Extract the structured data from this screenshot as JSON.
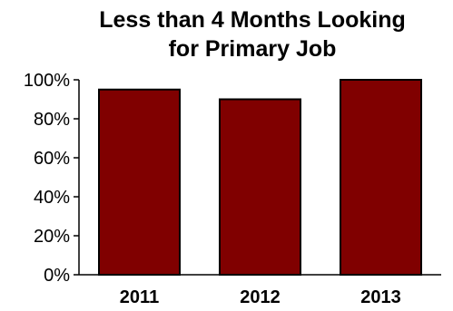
{
  "chart_data": {
    "type": "bar",
    "title_lines": [
      "Less than 4 Months Looking",
      "for Primary Job"
    ],
    "categories": [
      "2011",
      "2012",
      "2013"
    ],
    "values": [
      95,
      90,
      100
    ],
    "ylim": [
      0,
      100
    ],
    "yticks": [
      0,
      20,
      40,
      60,
      80,
      100
    ],
    "ytick_labels": [
      "0%",
      "20%",
      "40%",
      "60%",
      "80%",
      "100%"
    ],
    "xlabel": "",
    "ylabel": "",
    "grid": false,
    "legend": "none",
    "colors": {
      "bar_fill": "#800000",
      "bar_stroke": "#000000",
      "axis": "#000000"
    }
  }
}
